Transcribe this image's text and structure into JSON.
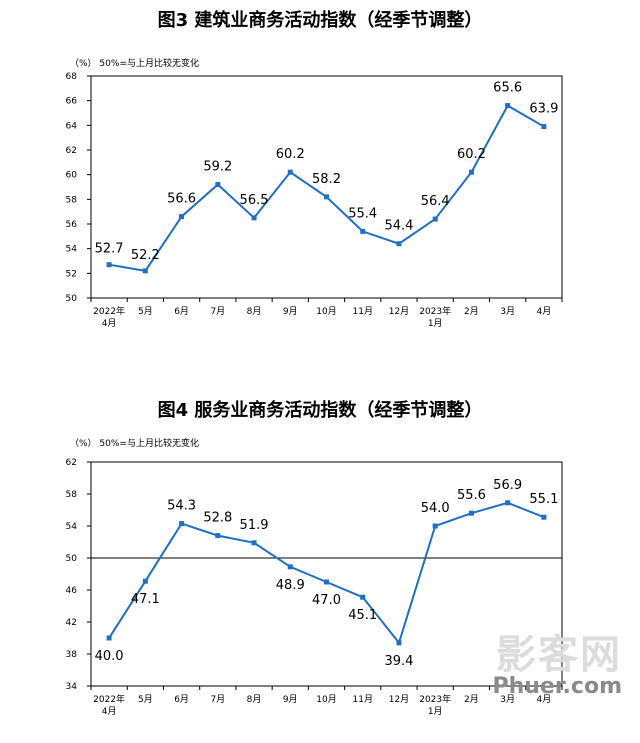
{
  "watermark": {
    "cn": "影客网",
    "en": "Phuer.com"
  },
  "chart_data": [
    {
      "type": "line",
      "title": "图3  建筑业商务活动指数（经季节调整）",
      "unit_note": "（%） 50%=与上月比较无变化",
      "categories": [
        "2022年\n4月",
        "5月",
        "6月",
        "7月",
        "8月",
        "9月",
        "10月",
        "11月",
        "12月",
        "2023年\n1月",
        "2月",
        "3月",
        "4月"
      ],
      "values": [
        52.7,
        52.2,
        56.6,
        59.2,
        56.5,
        60.2,
        58.2,
        55.4,
        54.4,
        56.4,
        60.2,
        65.6,
        63.9
      ],
      "data_labels": [
        "52.7",
        "52.2",
        "56.6",
        "59.2",
        "56.5",
        "60.2",
        "58.2",
        "55.4",
        "54.4",
        "56.4",
        "60.2",
        "65.6",
        "63.9"
      ],
      "ylim": [
        50,
        68
      ],
      "yticks": [
        "50",
        "52",
        "54",
        "56",
        "58",
        "60",
        "62",
        "64",
        "66",
        "68"
      ],
      "reference_line": null,
      "line_color": "#1f6fc5",
      "grid": false
    },
    {
      "type": "line",
      "title": "图4  服务业商务活动指数（经季节调整）",
      "unit_note": "（%） 50%=与上月比较无变化",
      "categories": [
        "2022年\n4月",
        "5月",
        "6月",
        "7月",
        "8月",
        "9月",
        "10月",
        "11月",
        "12月",
        "2023年\n1月",
        "2月",
        "3月",
        "4月"
      ],
      "values": [
        40.0,
        47.1,
        54.3,
        52.8,
        51.9,
        48.9,
        47.0,
        45.1,
        39.4,
        54.0,
        55.6,
        56.9,
        55.1
      ],
      "data_labels": [
        "40.0",
        "47.1",
        "54.3",
        "52.8",
        "51.9",
        "48.9",
        "47.0",
        "45.1",
        "39.4",
        "54.0",
        "55.6",
        "56.9",
        "55.1"
      ],
      "ylim": [
        34,
        62
      ],
      "yticks": [
        "34",
        "38",
        "42",
        "46",
        "50",
        "54",
        "58",
        "62"
      ],
      "reference_line": 50,
      "line_color": "#1f6fc5",
      "grid": false
    }
  ]
}
